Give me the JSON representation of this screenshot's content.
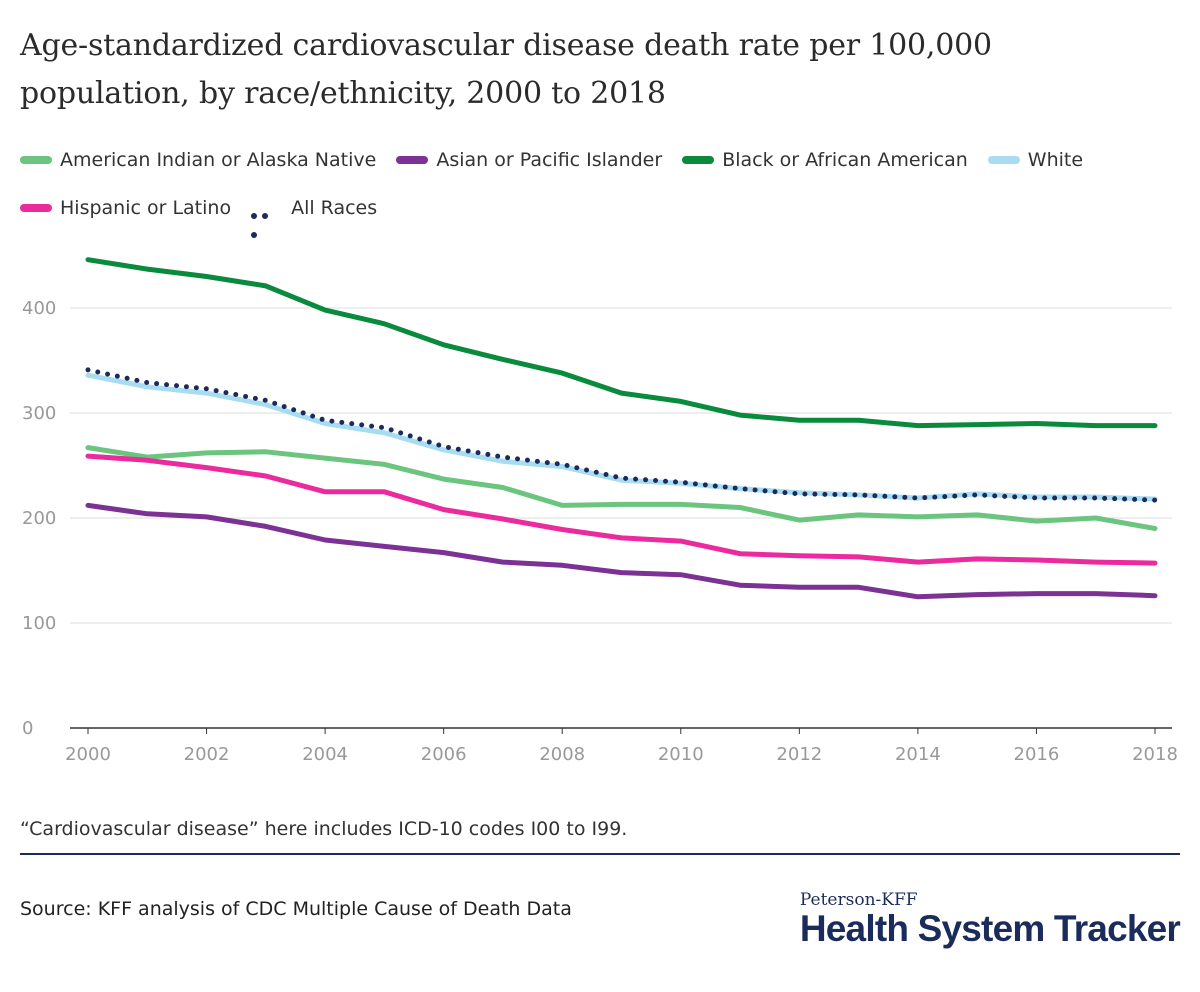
{
  "title": "Age-standardized cardiovascular disease death rate per 100,000 population, by race/ethnicity, 2000 to 2018",
  "note": "“Cardiovascular disease” here includes ICD-10 codes I00 to I99.",
  "source": "Source: KFF analysis of CDC Multiple Cause of Death Data",
  "brand": {
    "small": "Peterson-KFF",
    "large": "Health System Tracker"
  },
  "chart_data": {
    "type": "line",
    "title": "Age-standardized cardiovascular disease death rate per 100,000 population, by race/ethnicity, 2000 to 2018",
    "xlabel": "",
    "ylabel": "",
    "x": [
      2000,
      2001,
      2002,
      2003,
      2004,
      2005,
      2006,
      2007,
      2008,
      2009,
      2010,
      2011,
      2012,
      2013,
      2014,
      2015,
      2016,
      2017,
      2018
    ],
    "xticks": [
      "2000",
      "2002",
      "2004",
      "2006",
      "2008",
      "2010",
      "2012",
      "2014",
      "2016",
      "2018"
    ],
    "yticks": [
      "0",
      "100",
      "200",
      "300",
      "400"
    ],
    "ylim": [
      0,
      450
    ],
    "xlim": [
      2000,
      2018
    ],
    "grid": true,
    "legend_position": "top",
    "series": [
      {
        "name": "American Indian or Alaska Native",
        "color": "#6cc57f",
        "style": "solid",
        "values": [
          267,
          258,
          262,
          263,
          257,
          251,
          237,
          229,
          212,
          213,
          213,
          210,
          198,
          203,
          201,
          203,
          197,
          200,
          190
        ]
      },
      {
        "name": "Asian or Pacific Islander",
        "color": "#7b3294",
        "style": "solid",
        "values": [
          212,
          204,
          201,
          192,
          179,
          173,
          167,
          158,
          155,
          148,
          146,
          136,
          134,
          134,
          125,
          127,
          128,
          128,
          126
        ]
      },
      {
        "name": "Black or African American",
        "color": "#0a8a3c",
        "style": "solid",
        "values": [
          446,
          437,
          430,
          421,
          398,
          385,
          365,
          351,
          338,
          319,
          311,
          298,
          293,
          293,
          288,
          289,
          290,
          288,
          288
        ]
      },
      {
        "name": "White",
        "color": "#a8dcf2",
        "style": "solid",
        "values": [
          336,
          325,
          319,
          308,
          290,
          281,
          265,
          254,
          249,
          236,
          233,
          228,
          224,
          222,
          219,
          223,
          220,
          220,
          218
        ]
      },
      {
        "name": "Hispanic or Latino",
        "color": "#ea2a9d",
        "style": "solid",
        "values": [
          259,
          255,
          248,
          240,
          225,
          225,
          208,
          199,
          189,
          181,
          178,
          166,
          164,
          163,
          158,
          161,
          160,
          158,
          157
        ]
      },
      {
        "name": "All Races",
        "color": "#1b2b5b",
        "style": "dotted",
        "values": [
          341,
          329,
          323,
          312,
          293,
          286,
          268,
          258,
          251,
          238,
          234,
          228,
          223,
          222,
          219,
          222,
          219,
          219,
          217
        ]
      }
    ]
  }
}
